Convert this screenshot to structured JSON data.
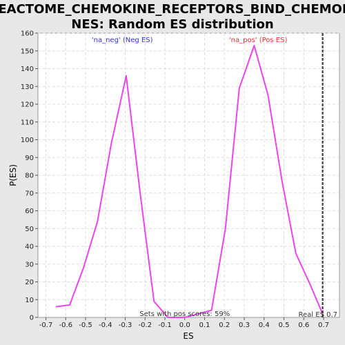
{
  "chart_data": {
    "type": "line",
    "title_lines": [
      "REACTOME_CHEMOKINE_RECEPTORS_BIND_CHEMOKI",
      "NES: Random ES distribution"
    ],
    "xlabel": "ES",
    "ylabel": "P(ES)",
    "xlim": [
      -0.74,
      0.78
    ],
    "ylim": [
      0,
      160
    ],
    "x_ticks": [
      -0.7,
      -0.6,
      -0.5,
      -0.4,
      -0.3,
      -0.2,
      -0.1,
      0.0,
      0.1,
      0.2,
      0.3,
      0.4,
      0.5,
      0.6,
      0.7
    ],
    "x_tick_labels": [
      "-0.7",
      "-0.6",
      "-0.5",
      "-0.4",
      "-0.3",
      "-0.2",
      "-0.1",
      "0.0",
      "0.1",
      "0.2",
      "0.3",
      "0.4",
      "0.5",
      "0.6",
      "0.7"
    ],
    "y_ticks": [
      0,
      10,
      20,
      30,
      40,
      50,
      60,
      70,
      80,
      90,
      100,
      110,
      120,
      130,
      140,
      150,
      160
    ],
    "y_tick_labels": [
      "0",
      "10",
      "20",
      "30",
      "40",
      "50",
      "60",
      "70",
      "80",
      "90",
      "100",
      "110",
      "120",
      "130",
      "140",
      "150",
      "160"
    ],
    "grid": true,
    "series": [
      {
        "name": "Random ES distribution",
        "color": "#ee44ee",
        "points": [
          [
            -0.65,
            6
          ],
          [
            -0.58,
            7
          ],
          [
            -0.51,
            28
          ],
          [
            -0.44,
            54
          ],
          [
            -0.37,
            98
          ],
          [
            -0.295,
            136
          ],
          [
            -0.225,
            70
          ],
          [
            -0.155,
            9
          ],
          [
            -0.085,
            0
          ],
          [
            0.0,
            0
          ],
          [
            0.135,
            4
          ],
          [
            0.205,
            50
          ],
          [
            0.275,
            129
          ],
          [
            0.35,
            153
          ],
          [
            0.42,
            125
          ],
          [
            0.49,
            77
          ],
          [
            0.56,
            36
          ],
          [
            0.63,
            19
          ],
          [
            0.695,
            2
          ]
        ]
      }
    ],
    "real_es": {
      "value": 0.695,
      "label": "Real ES 0.7",
      "color": "#333333"
    },
    "annotations": {
      "neg_label": "'na_neg' (Neg ES)",
      "neg_color": "#3333cc",
      "pos_label": "'na_pos' (Pos ES)",
      "pos_color": "#dd3333",
      "pos_scores": "Sets with pos scores: 59%"
    }
  }
}
